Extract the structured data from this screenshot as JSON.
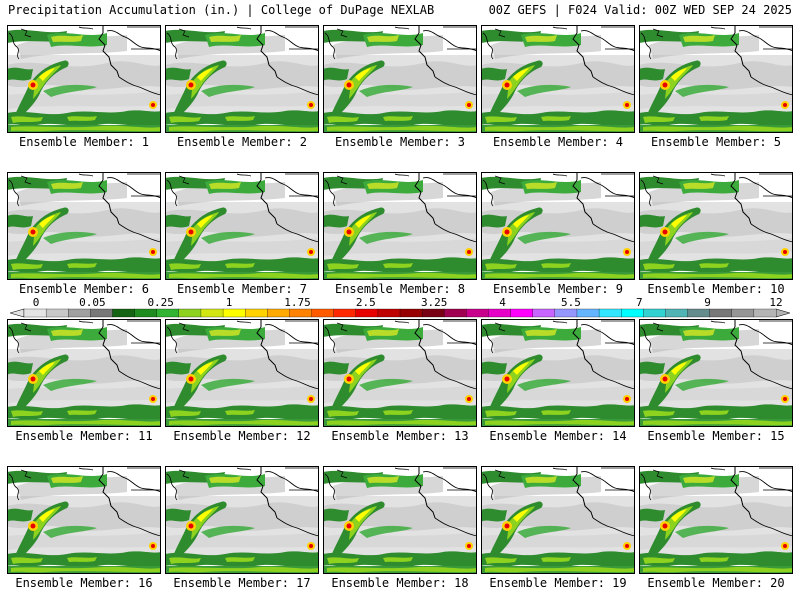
{
  "header": {
    "left": "Precipitation Accumulation (in.) | College of DuPage NEXLAB",
    "right": "00Z GEFS | F024 Valid: 00Z WED SEP 24 2025"
  },
  "members": [
    "Ensemble Member: 1",
    "Ensemble Member: 2",
    "Ensemble Member: 3",
    "Ensemble Member: 4",
    "Ensemble Member: 5",
    "Ensemble Member: 6",
    "Ensemble Member: 7",
    "Ensemble Member: 8",
    "Ensemble Member: 9",
    "Ensemble Member: 10",
    "Ensemble Member: 11",
    "Ensemble Member: 12",
    "Ensemble Member: 13",
    "Ensemble Member: 14",
    "Ensemble Member: 15",
    "Ensemble Member: 16",
    "Ensemble Member: 17",
    "Ensemble Member: 18",
    "Ensemble Member: 19",
    "Ensemble Member: 20"
  ],
  "scale": {
    "ticks": [
      "0",
      "0.05",
      "0.25",
      "1",
      "1.75",
      "2.5",
      "3.25",
      "4",
      "5.5",
      "7",
      "9",
      "12"
    ],
    "colors": [
      "#e4e4e4",
      "#c8c8c8",
      "#a0a0a0",
      "#787878",
      "#146414",
      "#1e8c1e",
      "#32b432",
      "#8cd21e",
      "#d2e614",
      "#ffff00",
      "#ffd200",
      "#ffaa00",
      "#ff8200",
      "#ff5a00",
      "#ff2800",
      "#e60000",
      "#be0000",
      "#960000",
      "#780014",
      "#a00050",
      "#c8008c",
      "#e600c8",
      "#ff00ff",
      "#c864ff",
      "#9696ff",
      "#64b4ff",
      "#32e6ff",
      "#00ffff",
      "#32d2d2",
      "#50b4b4",
      "#648c8c",
      "#787878",
      "#969696",
      "#b4b4b4"
    ]
  }
}
